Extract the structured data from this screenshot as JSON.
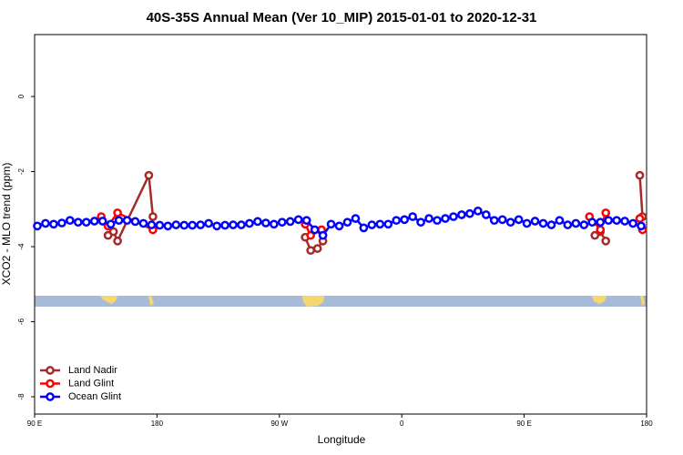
{
  "chart_data": {
    "type": "line",
    "title": "40S-35S Annual Mean (Ver 10_MIP)   2015-01-01 to 2020-12-31",
    "x_label": "Longitude",
    "y_label": "XCO2 - MLO trend (ppm)",
    "xlim": [
      90,
      540
    ],
    "xticks": [
      {
        "value": 90,
        "label": "90 E"
      },
      {
        "value": 180,
        "label": "180"
      },
      {
        "value": 270,
        "label": "90 W"
      },
      {
        "value": 360,
        "label": "0"
      },
      {
        "value": 450,
        "label": "90 E"
      },
      {
        "value": 540,
        "label": "180"
      }
    ],
    "ylim": [
      -8.46,
      1.65
    ],
    "yticks": [
      0,
      -2,
      -4,
      -6,
      -8
    ],
    "grid": false,
    "legend": "bottom-left",
    "series": [
      {
        "name": "Land Nadir",
        "color": "#a52a2a",
        "x": [
          144,
          148,
          151,
          174,
          177,
          null,
          289,
          293,
          298,
          302,
          null,
          502,
          506,
          510,
          null,
          535,
          537
        ],
        "values": [
          -3.7,
          -3.6,
          -3.85,
          -2.1,
          -3.2,
          null,
          -3.75,
          -4.1,
          -4.05,
          -3.85,
          null,
          -3.7,
          -3.6,
          -3.85,
          null,
          -2.1,
          -3.2
        ]
      },
      {
        "name": "Land Glint",
        "color": "#ff0000",
        "x": [
          139,
          144,
          151,
          177,
          null,
          289,
          293,
          301,
          null,
          498,
          506,
          510,
          null,
          535,
          537
        ],
        "values": [
          -3.2,
          -3.45,
          -3.1,
          -3.55,
          null,
          -3.4,
          -3.7,
          -3.55,
          null,
          -3.2,
          -3.55,
          -3.1,
          null,
          -3.25,
          -3.55
        ]
      },
      {
        "name": "Ocean Glint",
        "color": "#0000ff",
        "x": [
          92,
          98,
          104,
          110,
          116,
          122,
          128,
          134,
          140,
          146,
          152,
          158,
          164,
          170,
          176,
          182,
          188,
          194,
          200,
          206,
          212,
          218,
          224,
          230,
          236,
          242,
          248,
          254,
          260,
          266,
          272,
          278,
          284,
          290,
          296,
          302,
          308,
          314,
          320,
          326,
          332,
          338,
          344,
          350,
          356,
          362,
          368,
          374,
          380,
          386,
          392,
          398,
          404,
          410,
          416,
          422,
          428,
          434,
          440,
          446,
          452,
          458,
          464,
          470,
          476,
          482,
          488,
          494,
          500,
          506,
          512,
          518,
          524,
          530,
          536
        ],
        "values": [
          -3.45,
          -3.38,
          -3.4,
          -3.37,
          -3.3,
          -3.35,
          -3.35,
          -3.32,
          -3.32,
          -3.4,
          -3.3,
          -3.3,
          -3.33,
          -3.38,
          -3.42,
          -3.43,
          -3.45,
          -3.42,
          -3.43,
          -3.43,
          -3.42,
          -3.38,
          -3.45,
          -3.43,
          -3.42,
          -3.42,
          -3.38,
          -3.33,
          -3.37,
          -3.4,
          -3.35,
          -3.33,
          -3.28,
          -3.3,
          -3.55,
          -3.7,
          -3.4,
          -3.45,
          -3.35,
          -3.25,
          -3.5,
          -3.42,
          -3.4,
          -3.4,
          -3.3,
          -3.28,
          -3.2,
          -3.35,
          -3.25,
          -3.3,
          -3.25,
          -3.2,
          -3.15,
          -3.12,
          -3.05,
          -3.15,
          -3.3,
          -3.28,
          -3.35,
          -3.28,
          -3.38,
          -3.32,
          -3.38,
          -3.42,
          -3.3,
          -3.42,
          -3.38,
          -3.42,
          -3.35,
          -3.35,
          -3.3,
          -3.3,
          -3.32,
          -3.38,
          -3.45
        ]
      }
    ]
  }
}
